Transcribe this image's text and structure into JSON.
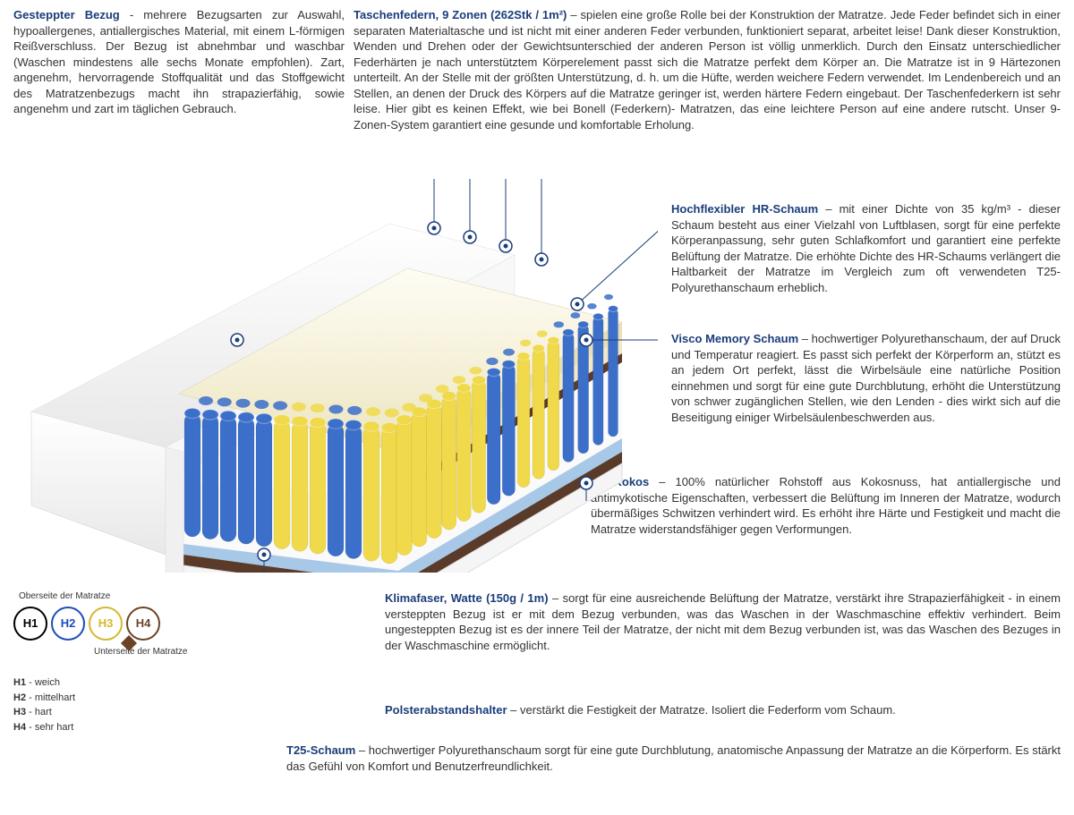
{
  "colors": {
    "title": "#1a3d7a",
    "text": "#333333",
    "marker": "#1a3d7a",
    "markerFill": "#ffffff",
    "springBlue": "#3b6fc9",
    "springYellow": "#f0d94a",
    "foamCream": "#f5f0d8",
    "foamBlue": "#a8c8e8",
    "kokos": "#5a3a28",
    "coverWhite": "#f5f5f5",
    "h1": "#000000",
    "h2": "#1a4db8",
    "h3": "#d4b82e",
    "h4": "#6b4226"
  },
  "blocks": {
    "topLeft": {
      "title": "Gesteppter Bezug",
      "text": " - mehrere Bezugsarten zur Auswahl, hypoallergenes, antiallergisches Material, mit einem L-förmigen Reißverschluss. Der Bezug ist abnehmbar und waschbar (Waschen mindestens alle sechs Monate empfohlen). Zart, angenehm, hervorragende Stoffqualität und das Stoffgewicht des Matratzenbezugs macht ihn strapazierfähig, sowie angenehm und zart im täglichen Gebrauch."
    },
    "topRight": {
      "title": "Taschenfedern, 9 Zonen (262Stk / 1m²)",
      "text": " – spielen eine große Rolle bei der Konstruktion der Matratze. Jede Feder befindet sich in einer separaten Materialtasche und ist nicht mit einer anderen Feder verbunden, funktioniert separat, arbeitet leise! Dank dieser Konstruktion, Wenden und Drehen oder der Gewichtsunterschied der anderen Person ist völlig unmerklich. Durch den Einsatz unterschiedlicher Federhärten je nach unterstütztem Körperelement passt sich die Matratze perfekt dem Körper an. Die Matratze ist in 9 Härtezonen unterteilt. An der Stelle mit der größten Unterstützung, d. h. um die Hüfte, werden weichere Federn verwendet. Im Lendenbereich und an Stellen, an denen der Druck des Körpers auf die Matratze geringer ist, werden härtere Federn eingebaut. Der Taschenfederkern ist sehr leise. Hier gibt es keinen Effekt, wie bei Bonell (Federkern)- Matratzen, das eine leichtere Person auf eine andere rutscht. Unser 9-Zonen-System garantiert eine gesunde und komfortable Erholung."
    },
    "hrSchaum": {
      "title": "Hochflexibler HR-Schaum",
      "text": " – mit einer Dichte von 35 kg/m³ - dieser Schaum besteht aus einer Vielzahl von Luftblasen, sorgt für eine perfekte Körperanpassung, sehr guten Schlafkomfort und garantiert eine perfekte Belüftung der Matratze. Die erhöhte Dichte des HR-Schaums verlängert die Haltbarkeit der Matratze im Vergleich zum oft verwendeten T25-Polyurethanschaum erheblich."
    },
    "visco": {
      "title": "Visco Memory Schaum",
      "text": " – hochwertiger Polyurethanschaum, der auf Druck und Temperatur reagiert. Es passt sich perfekt der Körperform an, stützt es an jedem Ort perfekt, lässt die Wirbelsäule eine natürliche Position einnehmen und sorgt für eine gute Durchblutung, erhöht die Unterstützung von schwer zugänglichen Stellen, wie den Lenden - dies wirkt sich auf die Beseitigung einiger Wirbelsäulenbeschwerden aus."
    },
    "kokos": {
      "title": "2x Kokos",
      "text": " – 100% natürlicher Rohstoff aus Kokosnuss, hat antiallergische und antimykotische Eigenschaften, verbessert die Belüftung im Inneren der Matratze, wodurch übermäßiges Schwitzen verhindert wird. Es erhöht ihre Härte und Festigkeit und macht die Matratze widerstandsfähiger gegen Verformungen."
    },
    "klima": {
      "title": "Klimafaser, Watte (150g / 1m)",
      "text": " – sorgt für eine ausreichende Belüftung der Matratze, verstärkt ihre Strapazierfähigkeit - in einem versteppten Bezug ist er mit dem Bezug verbunden, was das Waschen in der Waschmaschine effektiv verhindert. Beim ungesteppten Bezug ist es der innere Teil der Matratze, der nicht mit dem Bezug verbunden ist, was das Waschen des Bezuges in der Waschmaschine ermöglicht."
    },
    "polster": {
      "title": "Polsterabstandshalter",
      "text": " – verstärkt die Festigkeit der Matratze. Isoliert die Federform vom Schaum."
    },
    "t25": {
      "title": "T25-Schaum",
      "text": " – hochwertiger Polyurethanschaum sorgt für eine gute Durchblutung, anatomische Anpassung der Matratze an die Körperform. Es stärkt das Gefühl von Komfort und Benutzerfreundlichkeit."
    }
  },
  "hardness": {
    "topLabel": "Oberseite der Matratze",
    "botLabel": "Unterseite der Matratze",
    "levels": [
      {
        "code": "H1",
        "label": "weich",
        "color": "#000000"
      },
      {
        "code": "H2",
        "label": "mittelhart",
        "color": "#1a4db8"
      },
      {
        "code": "H3",
        "label": "hart",
        "color": "#d4b82e"
      },
      {
        "code": "H4",
        "label": "sehr hart",
        "color": "#6b4226"
      }
    ]
  }
}
